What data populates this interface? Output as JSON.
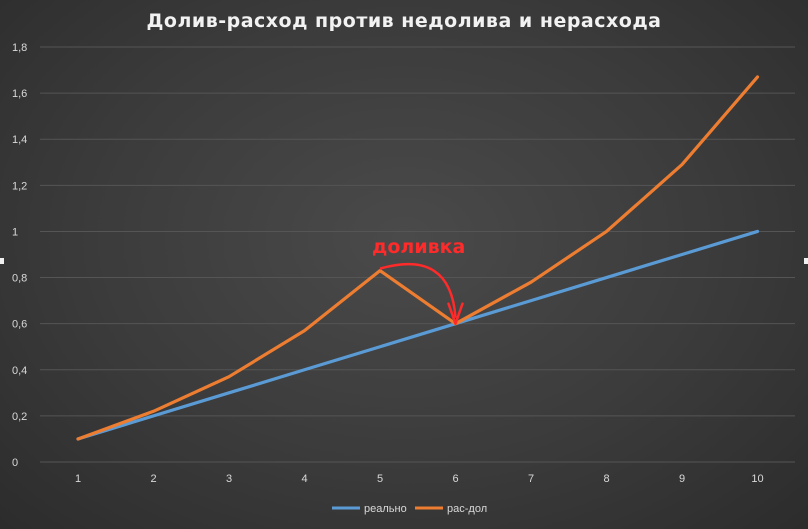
{
  "chart_data": {
    "type": "line",
    "title": "Долив-расход против недолива и нерасхода",
    "xlabel": "",
    "ylabel": "",
    "x": [
      1,
      2,
      3,
      4,
      5,
      6,
      7,
      8,
      9,
      10
    ],
    "ylim": [
      0,
      1.8
    ],
    "yticks": [
      "0",
      "0,2",
      "0,4",
      "0,6",
      "0,8",
      "1",
      "1,2",
      "1,4",
      "1,6",
      "1,8"
    ],
    "grid": true,
    "legend": "bottom",
    "series": [
      {
        "name": "реально",
        "color": "#5b9bd5",
        "values": [
          0.1,
          0.2,
          0.3,
          0.4,
          0.5,
          0.6,
          0.7,
          0.8,
          0.9,
          1.0
        ]
      },
      {
        "name": "рас-дол",
        "color": "#ed7d31",
        "values": [
          0.1,
          0.22,
          0.37,
          0.57,
          0.83,
          0.6,
          0.78,
          1.0,
          1.29,
          1.67
        ]
      }
    ],
    "annotations": [
      {
        "text": "доливка",
        "color": "#ff2a2a",
        "from_x": 5,
        "to_x": 6,
        "to_y": 0.6
      }
    ]
  }
}
